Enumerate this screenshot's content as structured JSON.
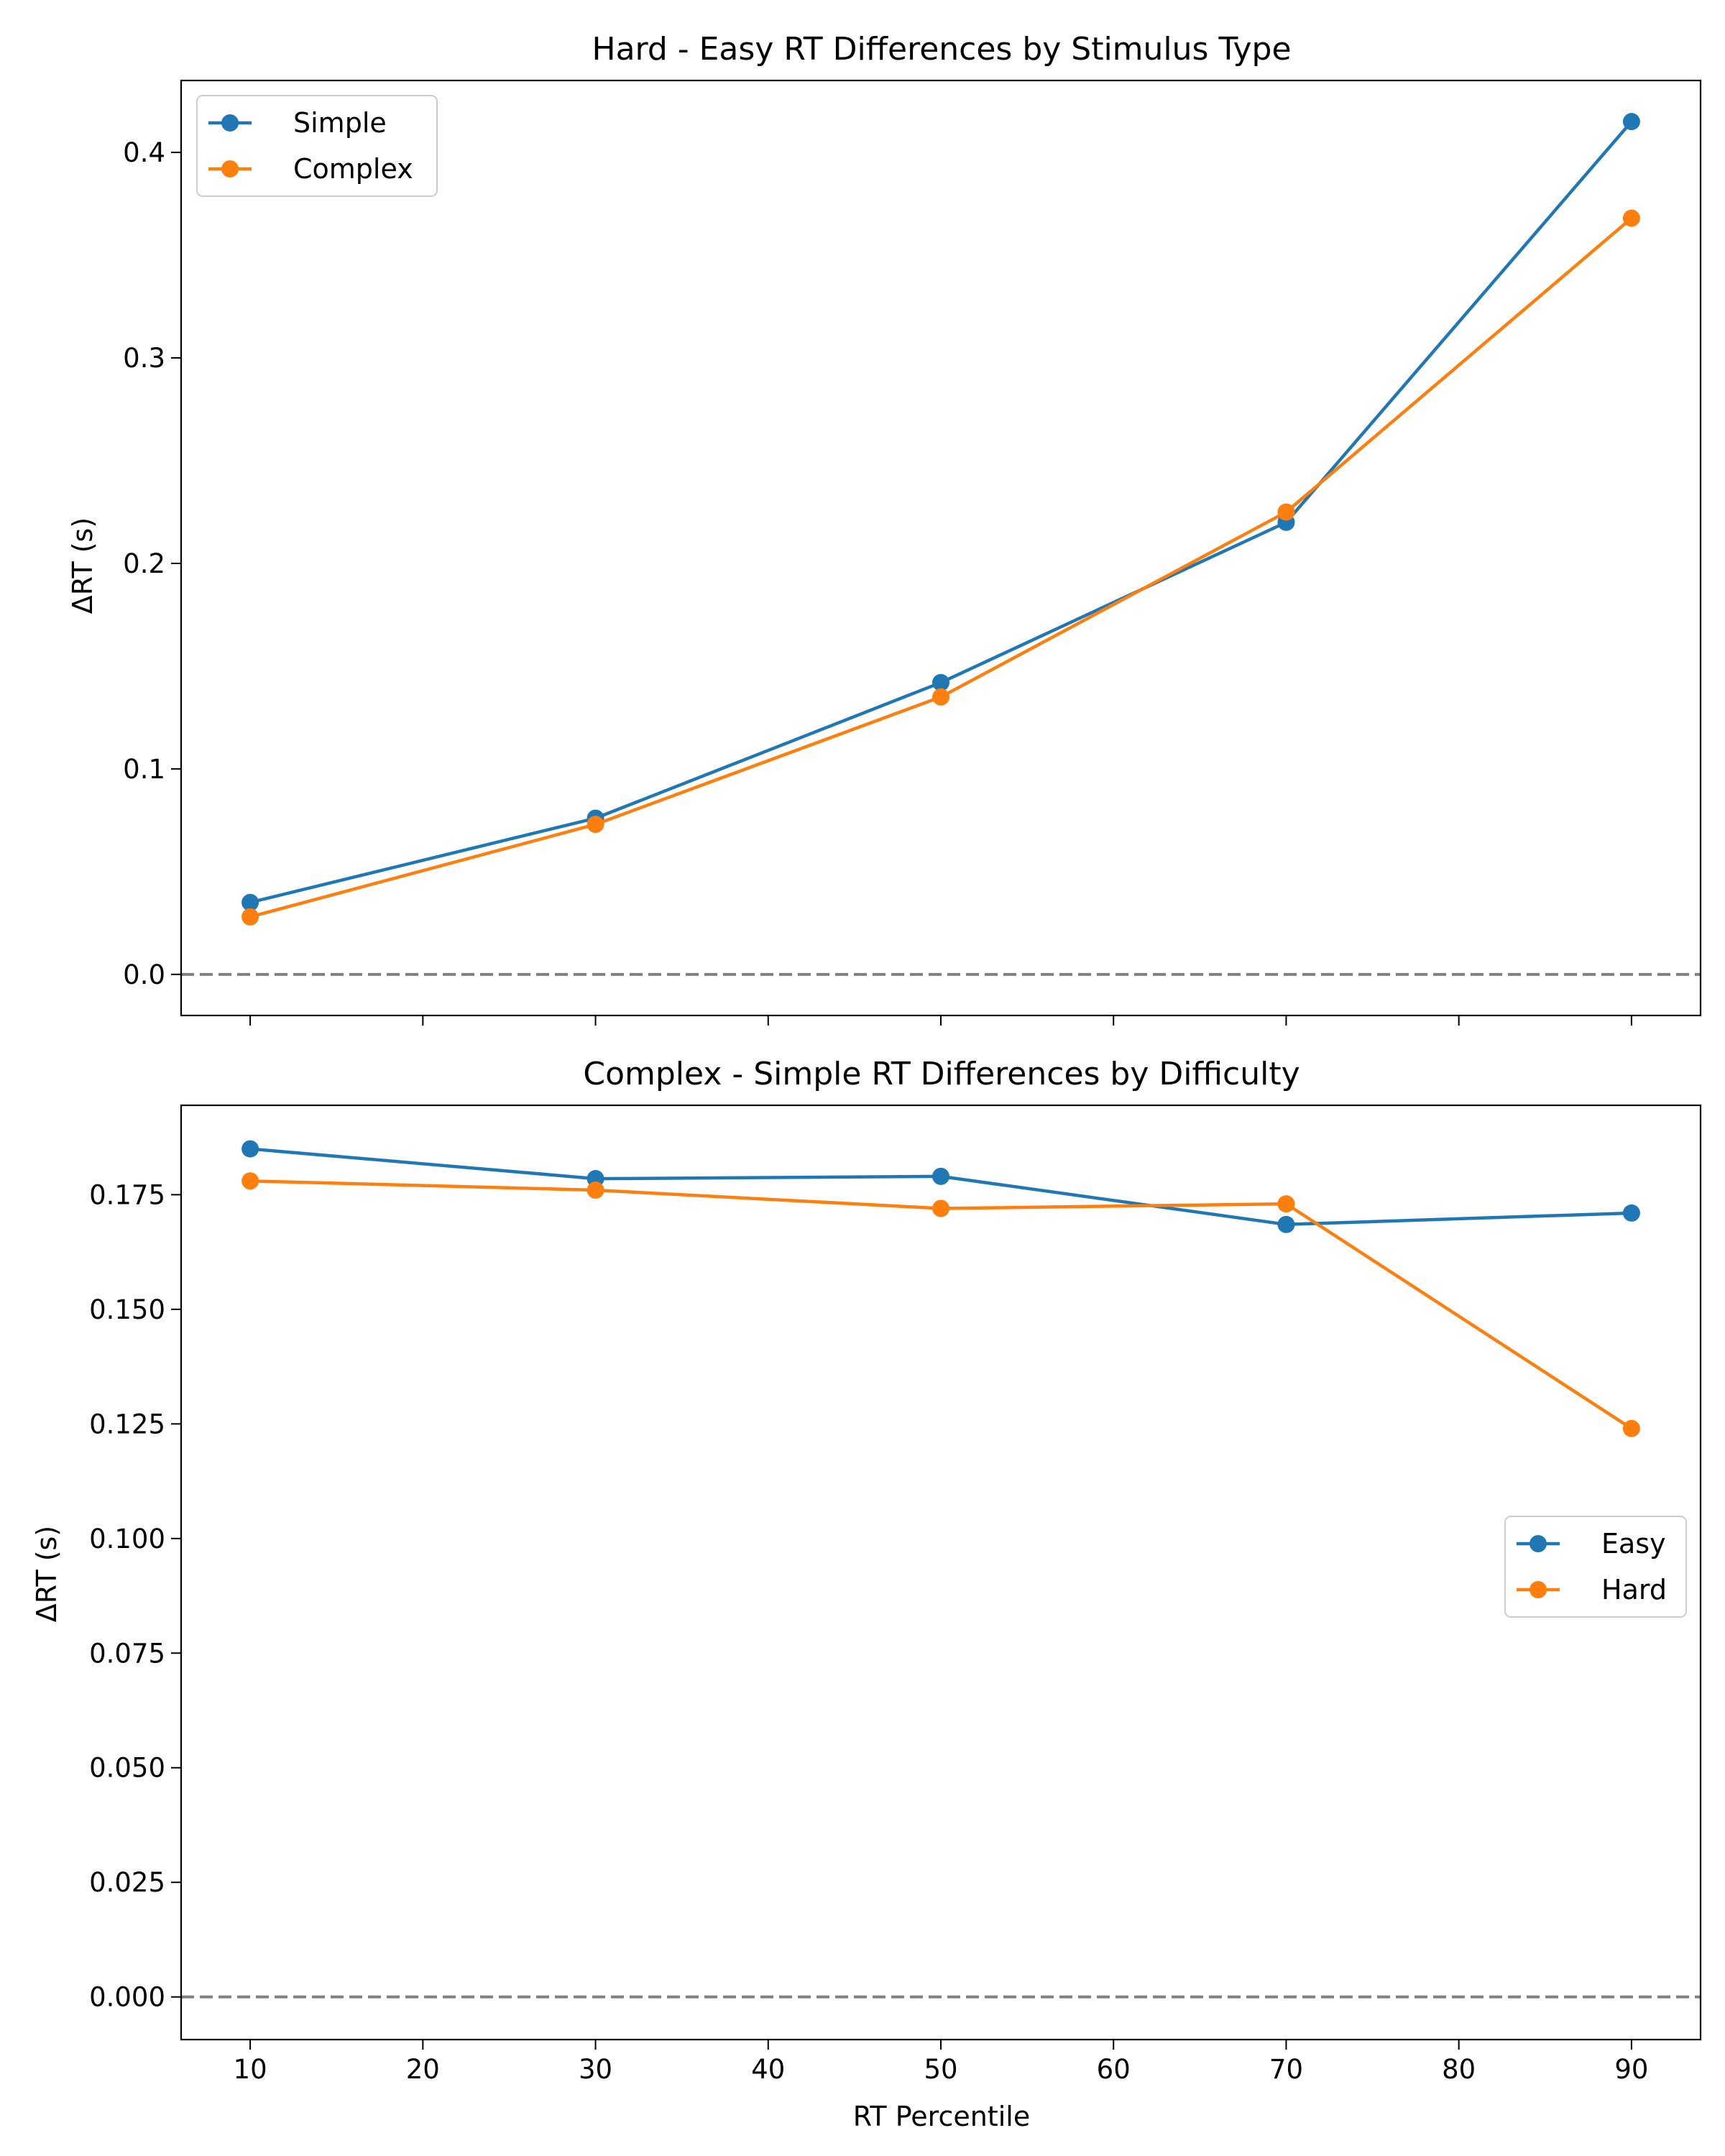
{
  "chart_data": [
    {
      "type": "line",
      "title": "Hard - Easy RT Differences by Stimulus Type",
      "xlabel": "",
      "ylabel": "ΔRT (s)",
      "x": [
        10,
        30,
        50,
        70,
        90
      ],
      "xlim": [
        6,
        94
      ],
      "ylim": [
        -0.02,
        0.435
      ],
      "xticks": [
        10,
        20,
        30,
        40,
        50,
        60,
        70,
        80,
        90
      ],
      "xtick_labels_visible": false,
      "yticks": [
        0.0,
        0.1,
        0.2,
        0.3,
        0.4
      ],
      "ytick_labels": [
        "0.0",
        "0.1",
        "0.2",
        "0.3",
        "0.4"
      ],
      "reference_line": {
        "y": 0.0,
        "style": "dashed",
        "color": "#808080"
      },
      "legend_position": "upper left",
      "series": [
        {
          "name": "Simple",
          "color": "#1f77b4",
          "marker": "circle",
          "values": [
            0.035,
            0.076,
            0.142,
            0.22,
            0.415
          ]
        },
        {
          "name": "Complex",
          "color": "#ff7f0e",
          "marker": "circle",
          "values": [
            0.028,
            0.073,
            0.135,
            0.225,
            0.368
          ]
        }
      ]
    },
    {
      "type": "line",
      "title": "Complex - Simple RT Differences by Difficulty",
      "xlabel": "RT Percentile",
      "ylabel": "ΔRT (s)",
      "x": [
        10,
        30,
        50,
        70,
        90
      ],
      "xlim": [
        6,
        94
      ],
      "ylim": [
        -0.0093,
        0.1945
      ],
      "xticks": [
        10,
        20,
        30,
        40,
        50,
        60,
        70,
        80,
        90
      ],
      "xtick_labels": [
        "10",
        "20",
        "30",
        "40",
        "50",
        "60",
        "70",
        "80",
        "90"
      ],
      "xtick_labels_visible": true,
      "yticks": [
        0.0,
        0.025,
        0.05,
        0.075,
        0.1,
        0.125,
        0.15,
        0.175
      ],
      "ytick_labels": [
        "0.000",
        "0.025",
        "0.050",
        "0.075",
        "0.100",
        "0.125",
        "0.150",
        "0.175"
      ],
      "reference_line": {
        "y": 0.0,
        "style": "dashed",
        "color": "#808080"
      },
      "legend_position": "center right",
      "series": [
        {
          "name": "Easy",
          "color": "#1f77b4",
          "marker": "circle",
          "values": [
            0.185,
            0.1785,
            0.179,
            0.1685,
            0.171
          ]
        },
        {
          "name": "Hard",
          "color": "#ff7f0e",
          "marker": "circle",
          "values": [
            0.178,
            0.176,
            0.172,
            0.173,
            0.124
          ]
        }
      ]
    }
  ]
}
